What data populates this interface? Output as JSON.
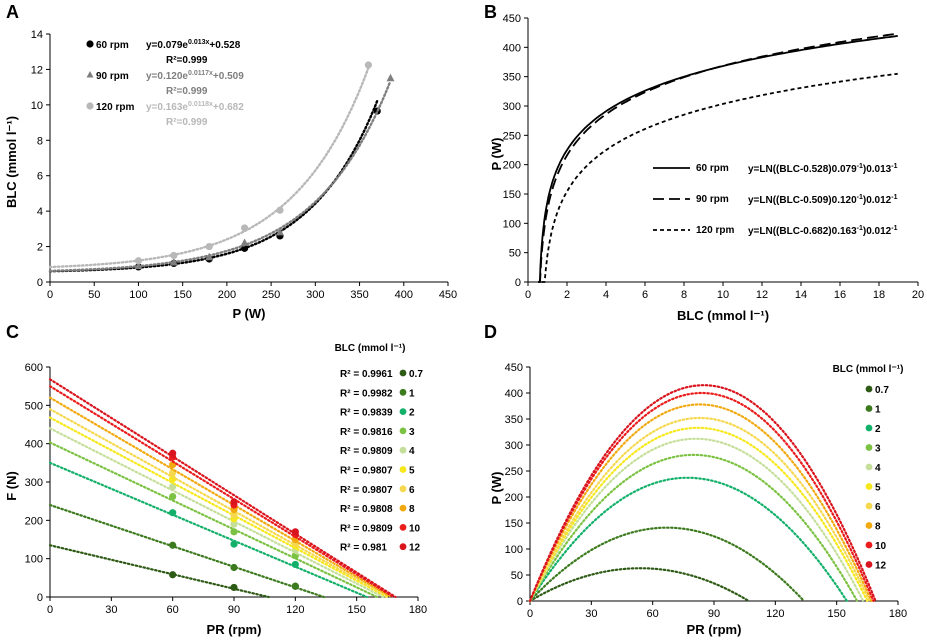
{
  "panels": {
    "A": {
      "letter": "A",
      "xlabel": "P (W)",
      "ylabel": "BLC (mmol l⁻¹)",
      "xticks": [
        "0",
        "50",
        "100",
        "150",
        "200",
        "250",
        "300",
        "350",
        "400",
        "450"
      ],
      "yticks": [
        "0",
        "2",
        "4",
        "6",
        "8",
        "10",
        "12",
        "14"
      ]
    },
    "B": {
      "letter": "B",
      "xlabel": "BLC (mmol l⁻¹)",
      "ylabel": "P (W)",
      "xticks": [
        "0",
        "2",
        "4",
        "6",
        "8",
        "10",
        "12",
        "14",
        "16",
        "18",
        "20"
      ],
      "yticks": [
        "0",
        "50",
        "100",
        "150",
        "200",
        "250",
        "300",
        "350",
        "400",
        "450"
      ]
    },
    "C": {
      "letter": "C",
      "xlabel": "PR (rpm)",
      "ylabel": "F (N)",
      "legend_title": "BLC (mmol l⁻¹)",
      "xticks": [
        "0",
        "30",
        "60",
        "90",
        "120",
        "150",
        "180"
      ],
      "yticks": [
        "0",
        "100",
        "200",
        "300",
        "400",
        "500",
        "600"
      ]
    },
    "D": {
      "letter": "D",
      "xlabel": "PR (rpm)",
      "ylabel": "P (W)",
      "legend_title": "BLC (mmol l⁻¹)",
      "xticks": [
        "0",
        "30",
        "60",
        "90",
        "120",
        "150",
        "180"
      ],
      "yticks": [
        "0",
        "50",
        "100",
        "150",
        "200",
        "250",
        "300",
        "350",
        "400",
        "450"
      ]
    }
  },
  "chart_data": [
    {
      "panel": "A",
      "type": "scatter",
      "xlim": [
        0,
        450
      ],
      "ylim": [
        0,
        14
      ],
      "series": [
        {
          "name": "60 rpm",
          "color": "#000000",
          "marker": "circle",
          "x": [
            100,
            140,
            180,
            220,
            260,
            370
          ],
          "y": [
            0.85,
            1.05,
            1.3,
            1.9,
            2.6,
            9.65
          ],
          "equation": "y=0.079e",
          "exp": "0.013x",
          "eq_tail": "+0.528",
          "r2": "R²=0.999",
          "fit": {
            "a": 0.079,
            "b": 0.013,
            "c": 0.528,
            "x_range": [
              0,
              370
            ]
          }
        },
        {
          "name": "90 rpm",
          "color": "#7f7f7f",
          "marker": "triangle",
          "x": [
            100,
            140,
            180,
            220,
            260,
            385
          ],
          "y": [
            0.9,
            1.1,
            1.4,
            2.2,
            2.8,
            11.5
          ],
          "equation": "y=0.120e",
          "exp": "0.0117x",
          "eq_tail": "+0.509",
          "r2": "R²=0.999",
          "fit": {
            "a": 0.12,
            "b": 0.0117,
            "c": 0.509,
            "x_range": [
              0,
              385
            ]
          }
        },
        {
          "name": "120 rpm",
          "color": "#b8b8b8",
          "marker": "circle",
          "x": [
            100,
            140,
            180,
            220,
            260,
            360
          ],
          "y": [
            1.2,
            1.5,
            2.0,
            3.05,
            4.05,
            12.25
          ],
          "equation": "y=0.163e",
          "exp": "0.0118x",
          "eq_tail": "+0.682",
          "r2": "R²=0.999",
          "fit": {
            "a": 0.163,
            "b": 0.0118,
            "c": 0.682,
            "x_range": [
              0,
              362
            ]
          }
        }
      ]
    },
    {
      "panel": "B",
      "type": "line",
      "xlim": [
        0,
        20
      ],
      "ylim": [
        0,
        450
      ],
      "series": [
        {
          "name": "60 rpm",
          "dash": "solid",
          "a": 0.079,
          "c": 0.528,
          "b": 0.013,
          "eq_main": "y=LN((BLC-0.528)0.079",
          "eq_mid": ")0.013"
        },
        {
          "name": "90 rpm",
          "dash": "long",
          "a": 0.12,
          "c": 0.509,
          "b": 0.0117,
          "eq_main": "y=LN((BLC-0.509)0.120",
          "eq_mid": ")0.012"
        },
        {
          "name": "120 rpm",
          "dash": "short",
          "a": 0.163,
          "c": 0.682,
          "b": 0.0118,
          "eq_main": "y=LN((BLC-0.682)0.163",
          "eq_mid": ")0.012"
        }
      ],
      "eq_sup": "-1"
    },
    {
      "panel": "C",
      "type": "scatter",
      "xlim": [
        0,
        180
      ],
      "ylim": [
        0,
        600
      ],
      "x": [
        60,
        90,
        120
      ],
      "series": [
        {
          "name": "0.7",
          "r2": "R² = 0.9961",
          "color": "#2d5a14",
          "intercept": 135,
          "x_end": 107,
          "values": [
            58,
            25,
            28
          ]
        },
        {
          "name": "1",
          "r2": "R² = 0.9982",
          "color": "#3c7a1e",
          "intercept": 240,
          "x_end": 134,
          "values": [
            135,
            77,
            28
          ]
        },
        {
          "name": "2",
          "r2": "R² = 0.9839",
          "color": "#13b06a",
          "intercept": 350,
          "x_end": 155,
          "values": [
            220,
            138,
            85
          ]
        },
        {
          "name": "3",
          "r2": "R² = 0.9816",
          "color": "#7cc242",
          "intercept": 403,
          "x_end": 160,
          "values": [
            262,
            170,
            108
          ]
        },
        {
          "name": "4",
          "r2": "R² = 0.9809",
          "color": "#c5df9a",
          "intercept": 440,
          "x_end": 163,
          "values": [
            288,
            190,
            122
          ]
        },
        {
          "name": "5",
          "r2": "R² = 0.9807",
          "color": "#f6e81c",
          "intercept": 468,
          "x_end": 165,
          "values": [
            308,
            204,
            133
          ]
        },
        {
          "name": "6",
          "r2": "R² = 0.9807",
          "color": "#f6d84e",
          "intercept": 490,
          "x_end": 166,
          "values": [
            324,
            214,
            140
          ]
        },
        {
          "name": "8",
          "r2": "R² = 0.9808",
          "color": "#f2a90f",
          "intercept": 520,
          "x_end": 167,
          "values": [
            345,
            228,
            150
          ]
        },
        {
          "name": "10",
          "r2": "R² = 0.9809",
          "color": "#ea1c1c",
          "intercept": 550,
          "x_end": 168,
          "values": [
            365,
            240,
            163
          ]
        },
        {
          "name": "12",
          "r2": "R² = 0.981",
          "color": "#d9141e",
          "intercept": 568,
          "x_end": 169,
          "values": [
            375,
            248,
            170
          ]
        }
      ]
    },
    {
      "panel": "D",
      "type": "line",
      "xlim": [
        0,
        180
      ],
      "ylim": [
        0,
        450
      ],
      "series": [
        {
          "name": "0.7",
          "color": "#2d5a14",
          "peak_x": 54,
          "peak_y": 63,
          "x_end": 107
        },
        {
          "name": "1",
          "color": "#3c7a1e",
          "peak_x": 67,
          "peak_y": 141,
          "x_end": 134
        },
        {
          "name": "2",
          "color": "#13b06a",
          "peak_x": 77,
          "peak_y": 237,
          "x_end": 155
        },
        {
          "name": "3",
          "color": "#7cc242",
          "peak_x": 80,
          "peak_y": 281,
          "x_end": 160
        },
        {
          "name": "4",
          "color": "#c5df9a",
          "peak_x": 81,
          "peak_y": 312,
          "x_end": 163
        },
        {
          "name": "5",
          "color": "#f6e81c",
          "peak_x": 82,
          "peak_y": 333,
          "x_end": 165
        },
        {
          "name": "6",
          "color": "#f6d84e",
          "peak_x": 83,
          "peak_y": 352,
          "x_end": 166
        },
        {
          "name": "8",
          "color": "#f2a90f",
          "peak_x": 83,
          "peak_y": 378,
          "x_end": 167
        },
        {
          "name": "10",
          "color": "#ea1c1c",
          "peak_x": 84,
          "peak_y": 400,
          "x_end": 168
        },
        {
          "name": "12",
          "color": "#d9141e",
          "peak_x": 85,
          "peak_y": 415,
          "x_end": 169
        }
      ]
    }
  ]
}
